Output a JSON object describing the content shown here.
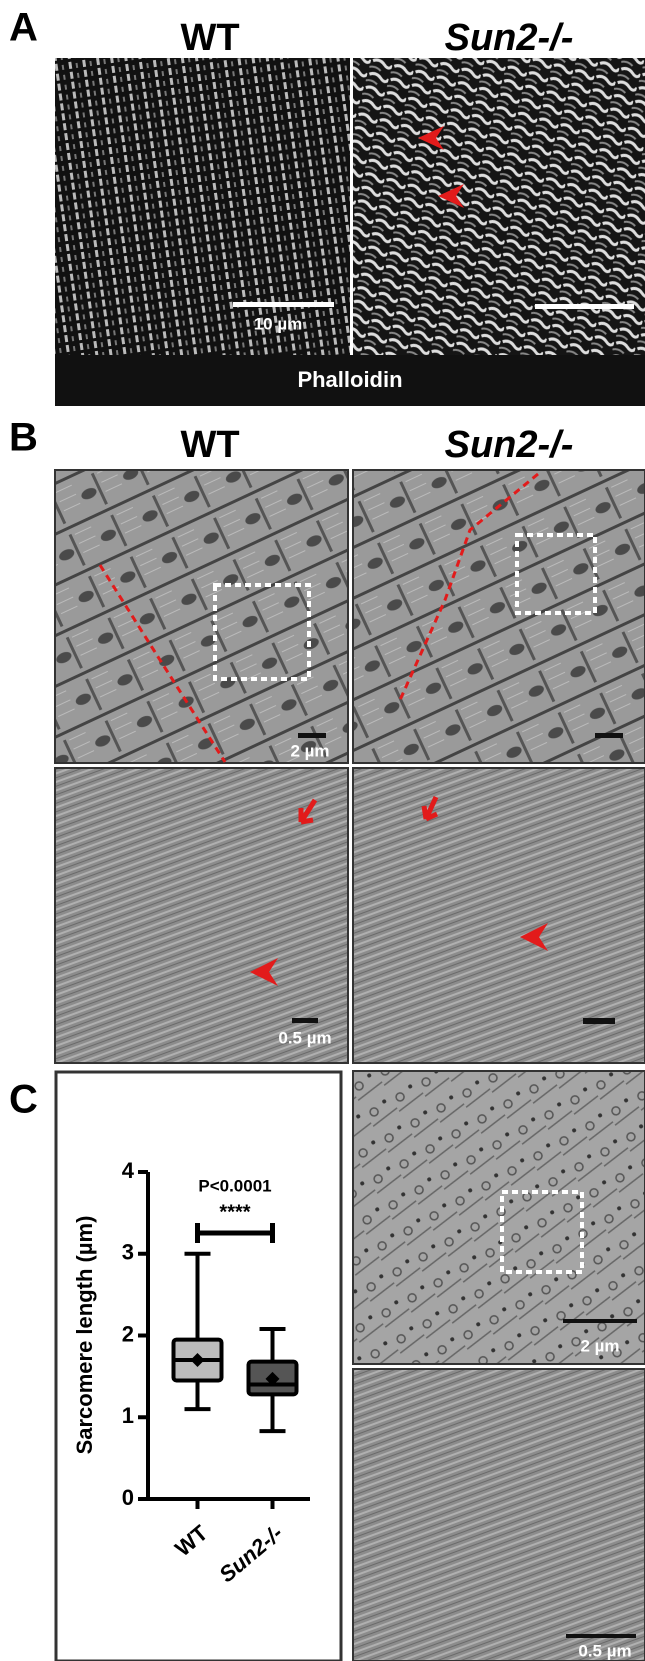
{
  "figure": {
    "panels": [
      {
        "label": "A",
        "columns": [
          "WT",
          "Sun2-/-"
        ],
        "scale": "10 µm",
        "stain": "Phalloidin"
      },
      {
        "label": "B",
        "columns": [
          "WT",
          "Sun2-/-"
        ],
        "scale_top": "2 µm",
        "scale_bottom": "0.5 µm"
      },
      {
        "label": "C",
        "scale_top": "2 µm",
        "scale_bottom": "0.5 µm"
      }
    ]
  },
  "chart_data": {
    "type": "box",
    "ylabel": "Sarcomere length (µm)",
    "ylim": [
      0,
      4
    ],
    "yticks": [
      0,
      1,
      2,
      3,
      4
    ],
    "annotation": "P<0.0001",
    "significance": "****",
    "series": [
      {
        "name": "WT",
        "color": "#bcbcbc",
        "min": 1.1,
        "q1": 1.45,
        "median": 1.7,
        "q3": 1.95,
        "max": 3.0,
        "mean": 1.7
      },
      {
        "name": "Sun2-/-",
        "color": "#555555",
        "min": 0.83,
        "q1": 1.28,
        "median": 1.4,
        "q3": 1.68,
        "max": 2.08,
        "mean": 1.47
      }
    ]
  }
}
